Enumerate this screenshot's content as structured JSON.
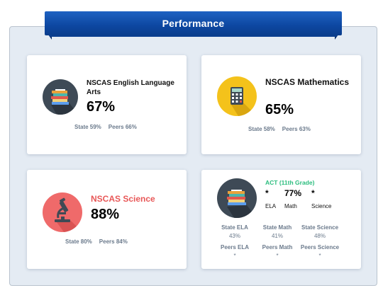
{
  "header": {
    "title": "Performance"
  },
  "cards": {
    "ela": {
      "title": "NSCAS English Language Arts",
      "percent": "67%",
      "state": "State 59%",
      "peers": "Peers 66%",
      "icon": "books-icon"
    },
    "math": {
      "title": "NSCAS Mathematics",
      "percent": "65%",
      "state": "State 58%",
      "peers": "Peers 63%",
      "icon": "calculator-icon"
    },
    "science": {
      "title": "NSCAS Science",
      "percent": "88%",
      "state": "State 80%",
      "peers": "Peers 84%",
      "icon": "microscope-icon"
    },
    "act": {
      "heading": "ACT (11th Grade)",
      "scores": [
        {
          "value": "*",
          "label": "ELA"
        },
        {
          "value": "77%",
          "label": "Math"
        },
        {
          "value": "*",
          "label": "Science"
        }
      ],
      "state": [
        {
          "label": "State ELA",
          "value": "43%"
        },
        {
          "label": "State Math",
          "value": "41%"
        },
        {
          "label": "State Science",
          "value": "48%"
        }
      ],
      "peers": [
        {
          "label": "Peers ELA",
          "value": "*"
        },
        {
          "label": "Peers Math",
          "value": "*"
        },
        {
          "label": "Peers Science",
          "value": "*"
        }
      ],
      "icon": "books-icon"
    }
  },
  "colors": {
    "banner": "#0d47a1",
    "ela_circle": "#3e4a56",
    "math_circle": "#f4c21b",
    "science_circle": "#ef6a6a",
    "science_title": "#e85858",
    "act_heading": "#2bbd7e"
  }
}
